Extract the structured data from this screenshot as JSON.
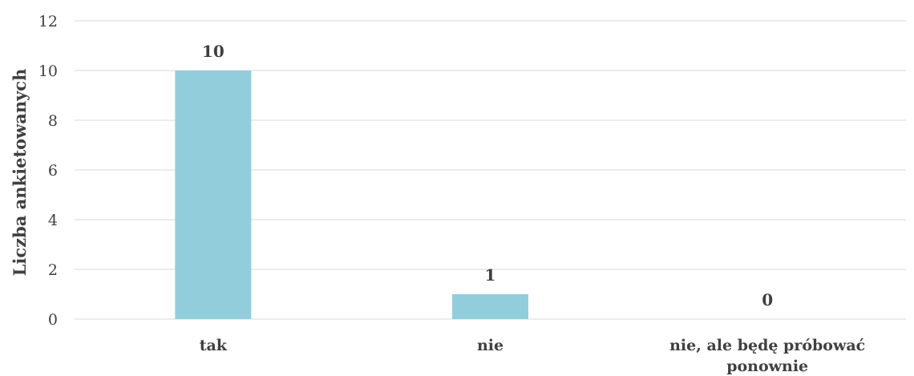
{
  "chart_data": {
    "type": "bar",
    "categories": [
      "tak",
      "nie",
      "nie, ale będę próbować ponownie"
    ],
    "category_label_lines": [
      [
        "tak"
      ],
      [
        "nie"
      ],
      [
        "nie, ale będę próbować",
        "ponownie"
      ]
    ],
    "values": [
      10,
      1,
      0
    ],
    "data_labels": [
      "10",
      "1",
      "0"
    ],
    "title": "",
    "xlabel": "",
    "ylabel": "Liczba ankietowanych",
    "ylim": [
      0,
      12
    ],
    "yticks": [
      0,
      2,
      4,
      6,
      8,
      10,
      12
    ],
    "grid": true,
    "legend": "none",
    "colors": {
      "bar": "#92CDDC",
      "grid": "#D9D9D9",
      "text": "#404040"
    }
  }
}
